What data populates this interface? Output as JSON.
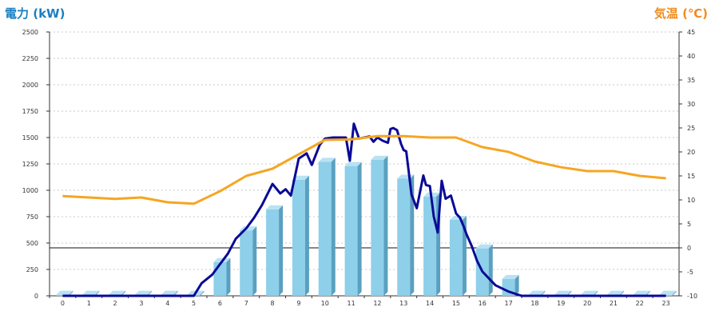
{
  "chart_data": {
    "type": "bar+line",
    "left_axis": {
      "label": "電力 (kW)",
      "min": 0,
      "max": 2500,
      "ticks": [
        0,
        250,
        500,
        750,
        1000,
        1250,
        1500,
        1750,
        2000,
        2250,
        2500
      ],
      "color": "#1a7fc1"
    },
    "right_axis": {
      "label": "気温 (℃)",
      "min": -10,
      "max": 45,
      "ticks": [
        -10,
        -5,
        0,
        5,
        10,
        15,
        20,
        25,
        30,
        35,
        40,
        45
      ],
      "color": "#f08c1e"
    },
    "categories": [
      "0",
      "1",
      "2",
      "3",
      "4",
      "5",
      "6",
      "7",
      "8",
      "9",
      "10",
      "11",
      "12",
      "13",
      "14",
      "15",
      "16",
      "17",
      "18",
      "19",
      "20",
      "21",
      "22",
      "23"
    ],
    "grid": true,
    "series": [
      {
        "kind": "bar",
        "axis": "left",
        "color": "#8ecfea",
        "values": [
          10,
          10,
          10,
          10,
          10,
          10,
          320,
          620,
          820,
          1100,
          1270,
          1230,
          1290,
          1110,
          940,
          720,
          450,
          160,
          10,
          10,
          10,
          10,
          10,
          10
        ]
      },
      {
        "kind": "line",
        "axis": "left",
        "color": "#0a0a96",
        "x": [
          0,
          1,
          2,
          3,
          4,
          5,
          5.3,
          5.7,
          6,
          6.3,
          6.6,
          7,
          7.3,
          7.6,
          7.8,
          8,
          8.2,
          8.3,
          8.5,
          8.7,
          9,
          9.3,
          9.5,
          9.8,
          10,
          10.3,
          10.5,
          10.8,
          10.95,
          11.1,
          11.3,
          11.5,
          11.7,
          11.85,
          12,
          12.2,
          12.4,
          12.5,
          12.6,
          12.75,
          12.9,
          13,
          13.1,
          13.3,
          13.5,
          13.75,
          13.85,
          14,
          14.15,
          14.3,
          14.45,
          14.6,
          14.8,
          15,
          15.15,
          15.3,
          15.4,
          15.6,
          15.8,
          16,
          16.5,
          17,
          17.5,
          18,
          19,
          20,
          21,
          22,
          23
        ],
        "y": [
          0,
          0,
          0,
          0,
          0,
          0,
          120,
          200,
          300,
          400,
          540,
          640,
          740,
          860,
          960,
          1060,
          1000,
          970,
          1010,
          950,
          1300,
          1350,
          1240,
          1430,
          1490,
          1500,
          1500,
          1500,
          1280,
          1630,
          1490,
          1500,
          1510,
          1460,
          1500,
          1470,
          1450,
          1580,
          1590,
          1570,
          1440,
          1380,
          1370,
          960,
          830,
          1140,
          1050,
          1040,
          750,
          600,
          1090,
          920,
          950,
          780,
          740,
          650,
          580,
          470,
          330,
          230,
          100,
          40,
          0,
          0,
          0,
          0,
          0,
          0,
          0
        ]
      },
      {
        "kind": "line",
        "axis": "right",
        "color": "#f5a623",
        "x": [
          0,
          1,
          2,
          3,
          4,
          5,
          6,
          7,
          8,
          9,
          10,
          11,
          12,
          13,
          14,
          15,
          16,
          17,
          18,
          19,
          20,
          21,
          22,
          23
        ],
        "y": [
          10.8,
          10.5,
          10.2,
          10.5,
          9.5,
          9.2,
          11.8,
          15,
          16.5,
          19.5,
          22.5,
          22.6,
          23.3,
          23.3,
          23,
          23,
          21,
          20,
          18,
          16.8,
          16,
          16,
          15,
          14.5
        ]
      }
    ]
  }
}
